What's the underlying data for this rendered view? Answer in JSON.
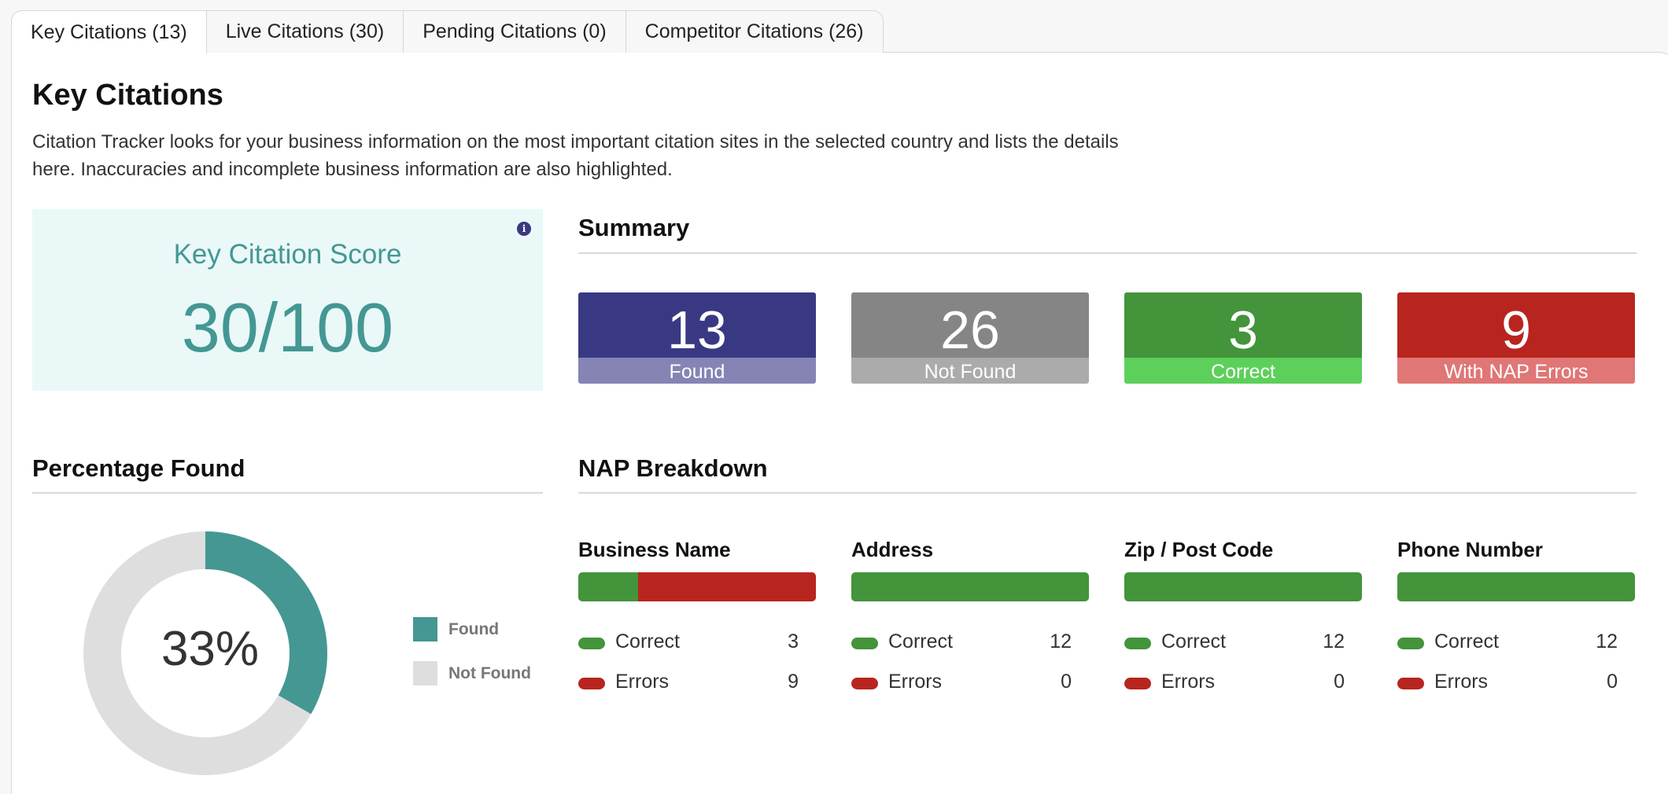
{
  "tabs": [
    {
      "label": "Key Citations (13)",
      "active": true
    },
    {
      "label": "Live Citations (30)",
      "active": false
    },
    {
      "label": "Pending Citations (0)",
      "active": false
    },
    {
      "label": "Competitor Citations (26)",
      "active": false
    }
  ],
  "page": {
    "title": "Key Citations",
    "description": "Citation Tracker looks for your business information on the most important citation sites in the selected country and lists the details here. Inaccuracies and incomplete business information are also highlighted."
  },
  "score": {
    "title": "Key Citation Score",
    "value": "30/100",
    "info_icon": "info-icon",
    "info_glyph": "i"
  },
  "summary": {
    "heading": "Summary",
    "cards": [
      {
        "value": "13",
        "label": "Found",
        "top_color": "#393983",
        "bottom_color": "#8584b5"
      },
      {
        "value": "26",
        "label": "Not Found",
        "top_color": "#858585",
        "bottom_color": "#ababab"
      },
      {
        "value": "3",
        "label": "Correct",
        "top_color": "#43943b",
        "bottom_color": "#5cd05a"
      },
      {
        "value": "9",
        "label": "With NAP Errors",
        "top_color": "#b8251f",
        "bottom_color": "#e07676"
      }
    ]
  },
  "percentage_found": {
    "heading": "Percentage Found",
    "percent_label": "33%",
    "found_fraction": 0.333,
    "found_color": "#449793",
    "not_found_color": "#dedede",
    "legend": [
      {
        "label": "Found",
        "color": "#449793"
      },
      {
        "label": "Not Found",
        "color": "#dedede"
      }
    ]
  },
  "nap": {
    "heading": "NAP Breakdown",
    "correct_label": "Correct",
    "errors_label": "Errors",
    "items": [
      {
        "title": "Business Name",
        "correct": 3,
        "errors": 9
      },
      {
        "title": "Address",
        "correct": 12,
        "errors": 0
      },
      {
        "title": "Zip / Post Code",
        "correct": 12,
        "errors": 0
      },
      {
        "title": "Phone Number",
        "correct": 12,
        "errors": 0
      }
    ]
  }
}
